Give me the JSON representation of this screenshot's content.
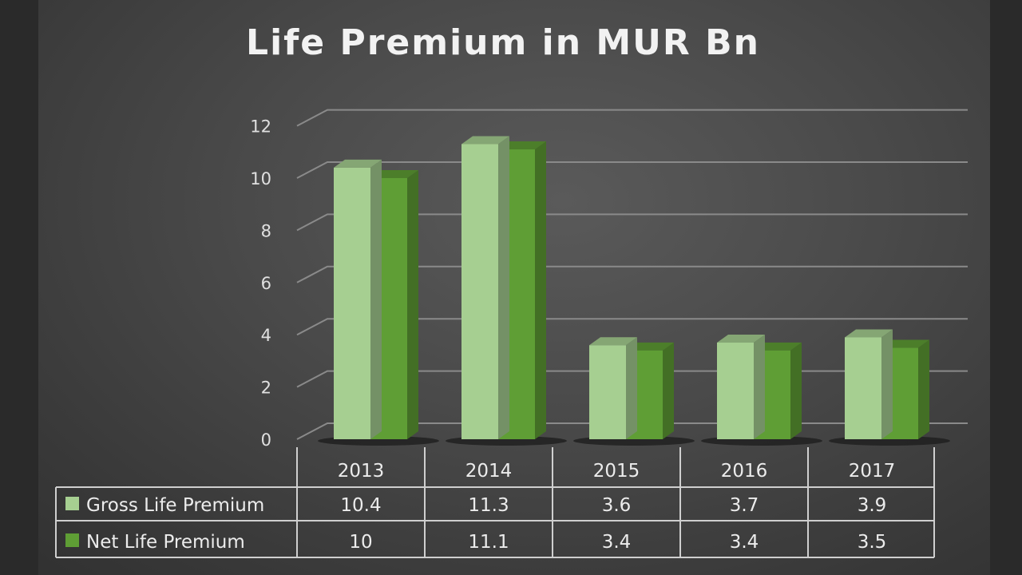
{
  "chart_data": {
    "type": "bar",
    "title": "Life Premium in MUR Bn",
    "categories": [
      "2013",
      "2014",
      "2015",
      "2016",
      "2017"
    ],
    "series": [
      {
        "name": "Gross Life Premium",
        "values": [
          10.4,
          11.3,
          3.6,
          3.7,
          3.9
        ],
        "color": "#a6cf91"
      },
      {
        "name": "Net Life Premium",
        "values": [
          10,
          11.1,
          3.4,
          3.4,
          3.5
        ],
        "color": "#5f9e35"
      }
    ],
    "ylim": [
      0,
      12
    ],
    "yticks": [
      "0",
      "2",
      "4",
      "6",
      "8",
      "10",
      "12"
    ],
    "grid": true,
    "legend": "data-table-bottom",
    "style": "3d-clustered-column"
  }
}
